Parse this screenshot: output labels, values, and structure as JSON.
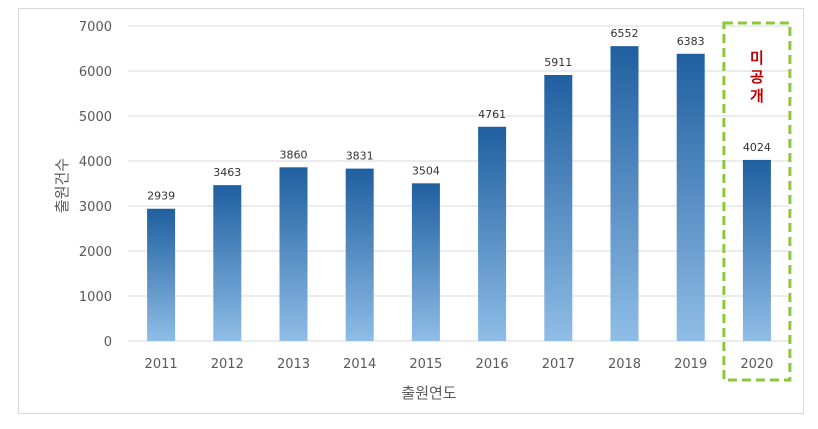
{
  "chart_data": {
    "type": "bar",
    "categories": [
      "2011",
      "2012",
      "2013",
      "2014",
      "2015",
      "2016",
      "2017",
      "2018",
      "2019",
      "2020"
    ],
    "values": [
      2939,
      3463,
      3860,
      3831,
      3504,
      4761,
      5911,
      6552,
      6383,
      4024
    ],
    "xlabel": "출원연도",
    "ylabel": "출원건수",
    "ylim": [
      0,
      7000
    ],
    "yticks": [
      0,
      1000,
      2000,
      3000,
      4000,
      5000,
      6000,
      7000
    ],
    "grid": true,
    "legend": "none",
    "annotation": {
      "text": [
        "미",
        "공",
        "개"
      ],
      "target_category": "2020",
      "box_style": "dashed",
      "box_color": "#8dc63f",
      "text_color": "#c00000"
    },
    "colors": {
      "bar_top": "#1f5fa0",
      "bar_bottom": "#8fbde6",
      "grid": "#d9d9d9"
    }
  }
}
